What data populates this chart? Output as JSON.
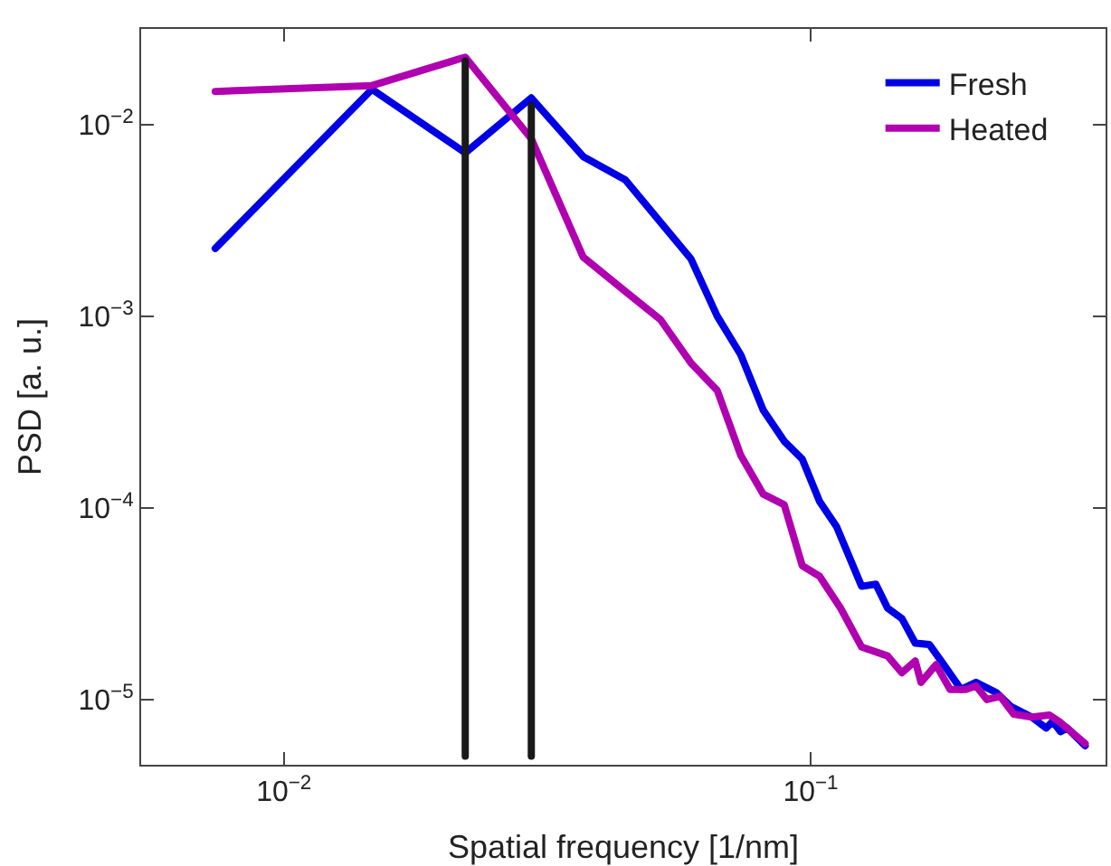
{
  "chart_data": {
    "type": "line",
    "xlabel": "Spatial frequency [1/nm]",
    "ylabel": "PSD [a. u.]",
    "log": "xy",
    "legend": "top right",
    "line_style": "solid",
    "marker": "none",
    "xlim": [
      0.00536,
      0.363
    ],
    "ylim": [
      4.57e-06,
      0.0316
    ],
    "xticks": [
      {
        "value": 0.01,
        "label": "10$^{−2}$"
      },
      {
        "value": 0.1,
        "label": "10$^{−1}$"
      }
    ],
    "yticks": [
      {
        "value": 1e-05,
        "label": "10$^{−5}$"
      },
      {
        "value": 0.0001,
        "label": "10$^{−4}$"
      },
      {
        "value": 0.001,
        "label": "10$^{−3}$"
      },
      {
        "value": 0.01,
        "label": "10$^{−2}$"
      }
    ],
    "series": [
      {
        "name": "Fresh",
        "color": "#0000e6",
        "x": [
          0.00741,
          0.0147,
          0.0221,
          0.0295,
          0.037,
          0.0445,
          0.0593,
          0.0665,
          0.0737,
          0.0813,
          0.0891,
          0.0964,
          0.104,
          0.112,
          0.125,
          0.133,
          0.14,
          0.149,
          0.158,
          0.168,
          0.179,
          0.193,
          0.206,
          0.225,
          0.24,
          0.263,
          0.28,
          0.288,
          0.298,
          0.307,
          0.332
        ],
        "values": [
          0.00226,
          0.0153,
          0.00713,
          0.0138,
          0.00682,
          0.00515,
          0.00199,
          0.001,
          0.00063,
          0.000324,
          0.000223,
          0.00018,
          0.000108,
          8e-05,
          3.9e-05,
          4e-05,
          3e-05,
          2.65e-05,
          1.97e-05,
          1.94e-05,
          1.52e-05,
          1.13e-05,
          1.23e-05,
          1.09e-05,
          9.2e-06,
          8.1e-06,
          7.1e-06,
          7.7e-06,
          6.8e-06,
          7.1e-06,
          5.74e-06
        ]
      },
      {
        "name": "Heated",
        "color": "#b000b0",
        "x": [
          0.00741,
          0.0147,
          0.0221,
          0.0295,
          0.037,
          0.0445,
          0.0519,
          0.0593,
          0.0665,
          0.0737,
          0.0813,
          0.0891,
          0.0964,
          0.104,
          0.114,
          0.125,
          0.14,
          0.149,
          0.158,
          0.162,
          0.173,
          0.184,
          0.197,
          0.206,
          0.216,
          0.229,
          0.243,
          0.263,
          0.284,
          0.298,
          0.332
        ],
        "values": [
          0.0149,
          0.016,
          0.0225,
          0.00844,
          0.00204,
          0.00135,
          0.00096,
          0.00057,
          0.00041,
          0.000188,
          0.000118,
          0.000104,
          5e-05,
          4.4e-05,
          3e-05,
          1.88e-05,
          1.69e-05,
          1.38e-05,
          1.59e-05,
          1.23e-05,
          1.52e-05,
          1.13e-05,
          1.13e-05,
          1.18e-05,
          1e-05,
          1.04e-05,
          8.4e-06,
          8.1e-06,
          8.3e-06,
          7.6e-06,
          5.9e-06
        ]
      },
      {
        "color": "#1a1a1a",
        "x": [
          0.0221,
          0.0221
        ],
        "values": [
          5.06e-06,
          0.0215
        ]
      },
      {
        "color": "#1a1a1a",
        "x": [
          0.0295,
          0.0295
        ],
        "values": [
          5.06e-06,
          0.0126
        ]
      }
    ]
  }
}
